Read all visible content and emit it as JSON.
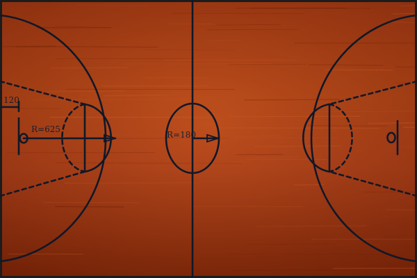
{
  "court": {
    "labels": {
      "corner_distance": "120",
      "three_point_radius": "R=625",
      "center_circle_radius": "R=180"
    },
    "colors": {
      "floor_base": "#b3421a",
      "floor_dark": "#7e2508",
      "floor_light": "#c4541f",
      "line": "#101828",
      "border": "#1c1c1c"
    }
  }
}
